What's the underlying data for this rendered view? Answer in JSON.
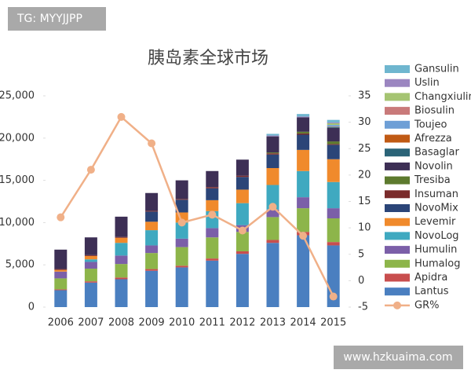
{
  "watermark_top": "TG: MYYJJPP",
  "watermark_bottom": "www.hzkuaima.com",
  "chart_data": {
    "type": "bar",
    "stacked": true,
    "title": "胰岛素全球市场",
    "categories": [
      "2006",
      "2007",
      "2008",
      "2009",
      "2010",
      "2011",
      "2012",
      "2013",
      "2014",
      "2015"
    ],
    "ylim": [
      0,
      25000
    ],
    "yticks": [
      0,
      {
        "value": 5000,
        "label": "5,000"
      },
      {
        "value": 10000,
        "label": "10,000"
      },
      {
        "value": 15000,
        "label": "15,000"
      },
      {
        "value": 20000,
        "label": "20,000"
      },
      {
        "value": 25000,
        "label": "25,000"
      }
    ],
    "y2lim": [
      -5,
      35
    ],
    "y2ticks": [
      -5,
      0,
      5,
      10,
      15,
      20,
      25,
      30,
      35
    ],
    "series": [
      {
        "name": "Lantus",
        "color": "#4a7fc0",
        "values": [
          2000,
          2900,
          3300,
          4300,
          4700,
          5500,
          6300,
          7600,
          8500,
          7300
        ]
      },
      {
        "name": "Apidra",
        "color": "#c84e4e",
        "values": [
          100,
          150,
          200,
          200,
          200,
          250,
          300,
          350,
          400,
          400
        ]
      },
      {
        "name": "Humalog",
        "color": "#8db54a",
        "values": [
          1300,
          1500,
          1600,
          1900,
          2200,
          2500,
          2300,
          2700,
          2800,
          2800
        ]
      },
      {
        "name": "Humulin",
        "color": "#7b5fa8",
        "values": [
          800,
          800,
          1000,
          900,
          1000,
          1100,
          800,
          900,
          1300,
          1200
        ]
      },
      {
        "name": "NovoLog",
        "color": "#3fa9c0",
        "values": [
          0,
          300,
          1500,
          1800,
          1900,
          2000,
          2600,
          2900,
          3100,
          3100
        ]
      },
      {
        "name": "Levemir",
        "color": "#f08a2c",
        "values": [
          200,
          400,
          600,
          1000,
          1200,
          1300,
          1600,
          2000,
          2500,
          2700
        ]
      },
      {
        "name": "NovoMix",
        "color": "#2b4578",
        "values": [
          0,
          0,
          0,
          1200,
          1500,
          1400,
          1500,
          1600,
          1800,
          1700
        ]
      },
      {
        "name": "Insuman",
        "color": "#7a2b2b",
        "values": [
          100,
          100,
          100,
          100,
          100,
          150,
          150,
          150,
          150,
          100
        ]
      },
      {
        "name": "Tresiba",
        "color": "#5d7a2e",
        "values": [
          0,
          0,
          0,
          0,
          0,
          0,
          0,
          100,
          200,
          300
        ]
      },
      {
        "name": "Novolin",
        "color": "#3d2f55",
        "values": [
          2300,
          2100,
          2400,
          2100,
          2200,
          1900,
          1900,
          1900,
          1700,
          1600
        ]
      },
      {
        "name": "Basaglar",
        "color": "#2b6478",
        "values": [
          0,
          0,
          0,
          0,
          0,
          0,
          0,
          0,
          0,
          100
        ]
      },
      {
        "name": "Afrezza",
        "color": "#c05a14",
        "values": [
          0,
          0,
          0,
          0,
          0,
          0,
          0,
          0,
          0,
          50
        ]
      },
      {
        "name": "Toujeo",
        "color": "#6e9fd6",
        "values": [
          0,
          0,
          0,
          0,
          0,
          0,
          0,
          0,
          0,
          200
        ]
      },
      {
        "name": "Biosulin",
        "color": "#c97a7a",
        "values": [
          0,
          0,
          0,
          0,
          0,
          0,
          0,
          0,
          0,
          0
        ]
      },
      {
        "name": "Changxiulin",
        "color": "#a5c472",
        "values": [
          0,
          0,
          0,
          0,
          0,
          0,
          0,
          0,
          0,
          200
        ]
      },
      {
        "name": "Uslin",
        "color": "#9b86c0",
        "values": [
          0,
          0,
          0,
          0,
          0,
          0,
          0,
          100,
          100,
          100
        ]
      },
      {
        "name": "Gansulin",
        "color": "#6fb6cf",
        "values": [
          0,
          0,
          0,
          0,
          0,
          0,
          0,
          200,
          300,
          300
        ]
      },
      {
        "name": "GR%",
        "color": "#f0b088",
        "type": "line",
        "axis": "y2",
        "values": [
          12,
          21,
          31,
          26,
          11,
          12.5,
          9.5,
          14,
          8.5,
          -3
        ]
      }
    ]
  }
}
